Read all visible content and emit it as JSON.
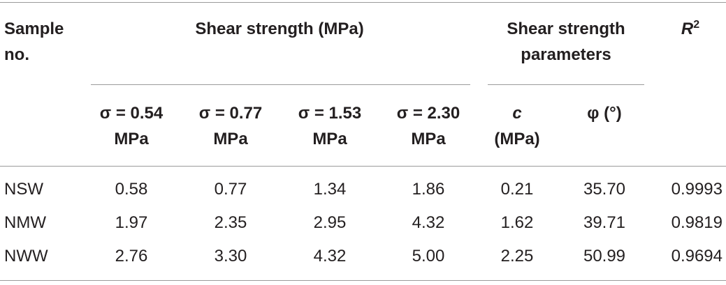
{
  "table": {
    "header": {
      "sample": "Sample no.",
      "group1": "Shear strength (MPa)",
      "group2": "Shear strength parameters",
      "r2": {
        "base": "R",
        "sup": "2"
      }
    },
    "subheaders": [
      "σ = 0.54 MPa",
      "σ = 0.77 MPa",
      "σ = 1.53 MPa",
      "σ = 2.30 MPa"
    ],
    "c_header": {
      "symbol": "c",
      "unit": "(MPa)"
    },
    "phi_header": "φ (°)",
    "rows": [
      [
        "NSW",
        "0.58",
        "0.77",
        "1.34",
        "1.86",
        "0.21",
        "35.70",
        "0.9993"
      ],
      [
        "NMW",
        "1.97",
        "2.35",
        "2.95",
        "4.32",
        "1.62",
        "39.71",
        "0.9819"
      ],
      [
        "NWW",
        "2.76",
        "3.30",
        "4.32",
        "5.00",
        "2.25",
        "50.99",
        "0.9694"
      ]
    ]
  }
}
